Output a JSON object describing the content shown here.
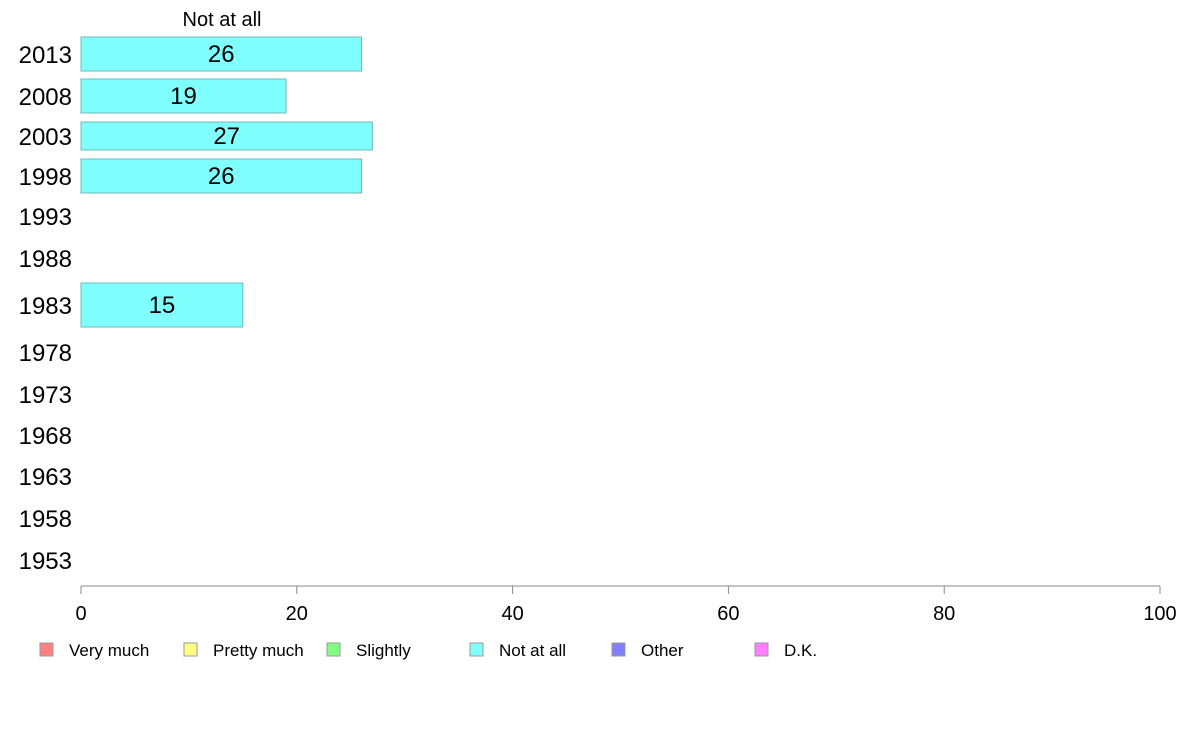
{
  "chart_data": {
    "type": "bar",
    "orientation": "horizontal",
    "panel_label": "Not at all",
    "categories": [
      "2013",
      "2008",
      "2003",
      "1998",
      "1993",
      "1988",
      "1983",
      "1978",
      "1973",
      "1968",
      "1963",
      "1958",
      "1953"
    ],
    "series": [
      {
        "name": "Not at all",
        "color": "#80ffff",
        "values": [
          26,
          19,
          27,
          26,
          null,
          null,
          15,
          null,
          null,
          null,
          null,
          null,
          null
        ]
      }
    ],
    "xlim": [
      0,
      100
    ],
    "xticks": [
      0,
      20,
      40,
      60,
      80,
      100
    ],
    "grid": false,
    "legend_position": "bottom",
    "legend": [
      {
        "label": "Very much",
        "color": "#ff8080"
      },
      {
        "label": "Pretty much",
        "color": "#ffff80"
      },
      {
        "label": "Slightly",
        "color": "#80ff80"
      },
      {
        "label": "Not at all",
        "color": "#80ffff"
      },
      {
        "label": "Other",
        "color": "#8080ff"
      },
      {
        "label": "D.K.",
        "color": "#ff80ff"
      }
    ],
    "data_labels": [
      "26",
      "19",
      "27",
      "26",
      "",
      "",
      "15",
      "",
      "",
      "",
      "",
      "",
      ""
    ]
  }
}
